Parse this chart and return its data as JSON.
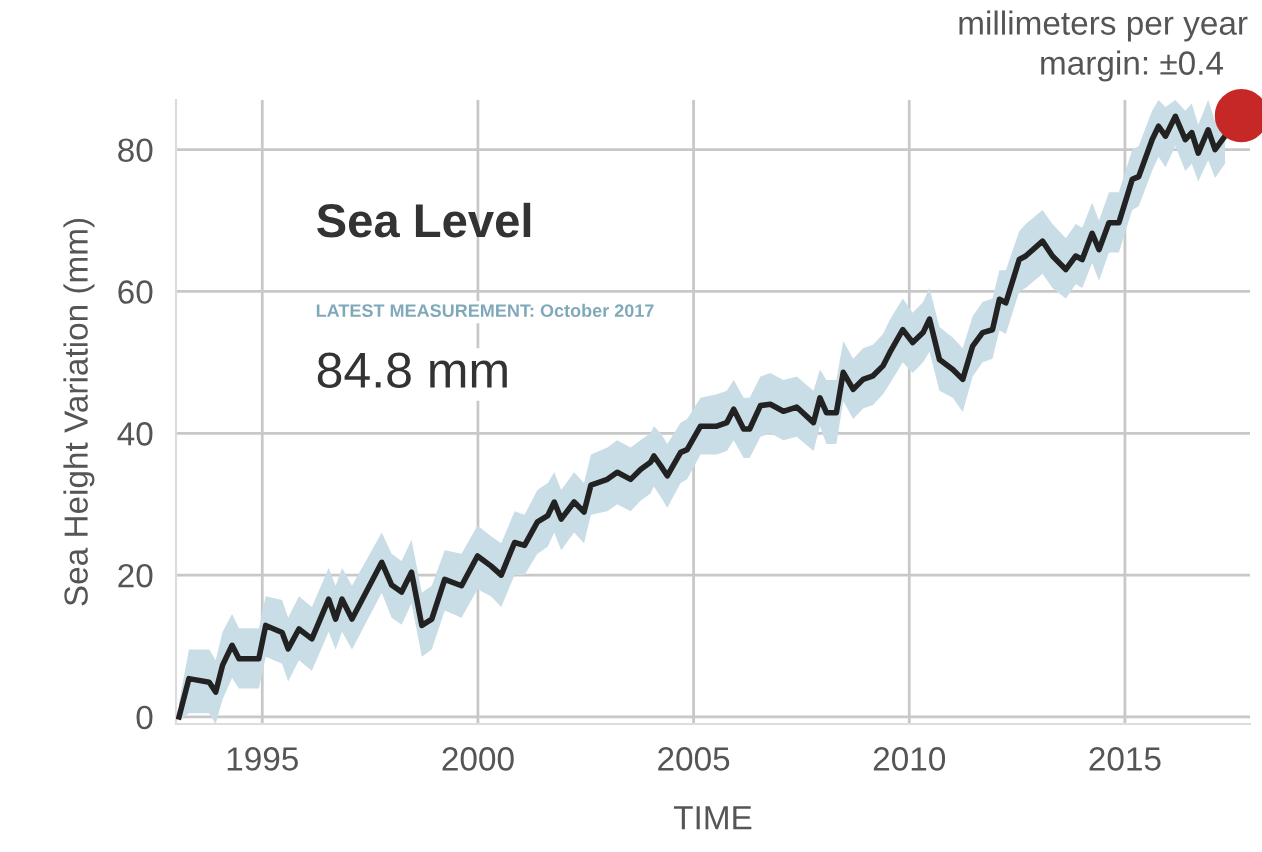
{
  "chart_data": {
    "type": "line",
    "xlabel": "TIME",
    "ylabel": "Sea Height Variation (mm)",
    "annotations": [
      "Sea Level",
      "LATEST MEASUREMENT: October 2017",
      "84.8 mm",
      "millimeters per year",
      "margin: ±0.4"
    ],
    "xlim": [
      1993,
      2017.9
    ],
    "ylim": [
      -1,
      87
    ],
    "xticks": [
      1995,
      2000,
      2005,
      2010,
      2015
    ],
    "yticks": [
      0,
      20,
      40,
      60,
      80
    ],
    "grid": true,
    "series": [
      {
        "color": "#222222",
        "x": [
          1993.07,
          1993.3,
          1993.77,
          1993.92,
          1994.08,
          1994.3,
          1994.46,
          1994.92,
          1995.08,
          1995.46,
          1995.6,
          1995.85,
          1996.15,
          1996.54,
          1996.7,
          1996.85,
          1997.08,
          1997.77,
          1998.0,
          1998.23,
          1998.46,
          1998.7,
          1998.93,
          1999.23,
          1999.62,
          1999.99,
          2000.3,
          2000.54,
          2000.85,
          2001.08,
          2001.38,
          2001.62,
          2001.77,
          2001.93,
          2002.23,
          2002.46,
          2002.62,
          2003.0,
          2003.23,
          2003.54,
          2003.77,
          2004.0,
          2004.08,
          2004.24,
          2004.39,
          2004.7,
          2004.85,
          2005.16,
          2005.54,
          2005.77,
          2005.93,
          2006.16,
          2006.3,
          2006.55,
          2006.78,
          2007.08,
          2007.39,
          2007.78,
          2007.93,
          2008.08,
          2008.31,
          2008.47,
          2008.7,
          2008.93,
          2009.16,
          2009.39,
          2009.55,
          2009.85,
          2010.08,
          2010.32,
          2010.47,
          2010.7,
          2011.01,
          2011.24,
          2011.47,
          2011.7,
          2011.93,
          2012.09,
          2012.24,
          2012.55,
          2012.7,
          2013.09,
          2013.32,
          2013.63,
          2013.86,
          2014.01,
          2014.24,
          2014.4,
          2014.63,
          2014.86,
          2015.17,
          2015.32,
          2015.63,
          2015.78,
          2015.94,
          2016.17,
          2016.4,
          2016.55,
          2016.7,
          2016.93,
          2017.09,
          2017.32
        ],
        "values": [
          0,
          5.4,
          4.9,
          3.5,
          7.3,
          10.1,
          8.2,
          8.2,
          12.9,
          11.9,
          9.6,
          12.4,
          11,
          16.6,
          13.8,
          16.6,
          13.8,
          21.8,
          18.6,
          17.6,
          20.4,
          12.9,
          13.8,
          19.4,
          18.5,
          22.7,
          21.3,
          20,
          24.6,
          24.2,
          27.5,
          28.4,
          30.3,
          27.9,
          30.3,
          28.9,
          32.7,
          33.5,
          34.5,
          33.5,
          34.9,
          35.9,
          36.8,
          35.4,
          34,
          37.3,
          37.7,
          41,
          41,
          41.5,
          43.4,
          40.6,
          40.6,
          43.9,
          44.1,
          43.1,
          43.7,
          41.5,
          45,
          42.9,
          42.9,
          48.6,
          46.2,
          47.6,
          48.1,
          49.5,
          51.4,
          54.6,
          52.8,
          54.2,
          56.1,
          50.4,
          49,
          47.6,
          52.3,
          54.2,
          54.6,
          58.9,
          58.4,
          64.5,
          65,
          67.1,
          65,
          63.1,
          65,
          64.5,
          68.2,
          65.9,
          69.7,
          69.7,
          75.8,
          76.2,
          81.4,
          83.3,
          81.9,
          84.7,
          81.4,
          82.4,
          79.5,
          82.8,
          80,
          81.9
        ],
        "lower": [
          -0.5,
          0.5,
          0.5,
          -1,
          2.5,
          5.5,
          4,
          4,
          8.5,
          7.5,
          5,
          8,
          6.5,
          12,
          9.5,
          12,
          9.5,
          17.5,
          14,
          13,
          16,
          8.5,
          9.5,
          15,
          14,
          18,
          17,
          15.5,
          20,
          20,
          23,
          24,
          26,
          23.5,
          26,
          24.5,
          28.5,
          29,
          30,
          29,
          30.5,
          31.5,
          32.5,
          31,
          29.5,
          33,
          33.5,
          37,
          37,
          37.5,
          39,
          36.5,
          36.5,
          39.5,
          40,
          39,
          39.5,
          37.5,
          41,
          38.5,
          38.5,
          44.5,
          42,
          43.5,
          44,
          45.5,
          47,
          50,
          48.5,
          50,
          51.5,
          46,
          45,
          43,
          48,
          50,
          50.5,
          54.5,
          54,
          60,
          60.5,
          62.5,
          60.5,
          59,
          61,
          60.5,
          64,
          61.5,
          65.5,
          65.5,
          71.5,
          72,
          77,
          79,
          77.5,
          80.5,
          77,
          78,
          75.5,
          78.5,
          76,
          78
        ],
        "upper": [
          2,
          9.5,
          9.5,
          8,
          12,
          14.5,
          12.5,
          12.5,
          17,
          16.5,
          14,
          17,
          15.5,
          21,
          18.5,
          21,
          18.5,
          26,
          23,
          22,
          25,
          17.5,
          18.5,
          23.5,
          23,
          27,
          25.5,
          24.5,
          29,
          28.5,
          32,
          33,
          34.5,
          32,
          34.5,
          33,
          37,
          38,
          39,
          38,
          39,
          40,
          41,
          40,
          38.5,
          41.5,
          42,
          45,
          45.5,
          46,
          47.5,
          45,
          45,
          48,
          48.5,
          47.5,
          48,
          46,
          49,
          47.5,
          47.5,
          53,
          50.5,
          52,
          52.5,
          54,
          56,
          59,
          57,
          58.5,
          60.5,
          55,
          53.5,
          52,
          56.5,
          58.5,
          59,
          63,
          63,
          68.5,
          69.5,
          71.5,
          69.5,
          67.5,
          69.5,
          69,
          72.5,
          70,
          74,
          74,
          80,
          80.5,
          85.5,
          87,
          86,
          87,
          85.5,
          86.5,
          83.5,
          87,
          84,
          86
        ]
      },
      {
        "type": "scatter",
        "color": "#c62828",
        "x": [
          2017.7
        ],
        "values": [
          84.8
        ]
      }
    ]
  }
}
